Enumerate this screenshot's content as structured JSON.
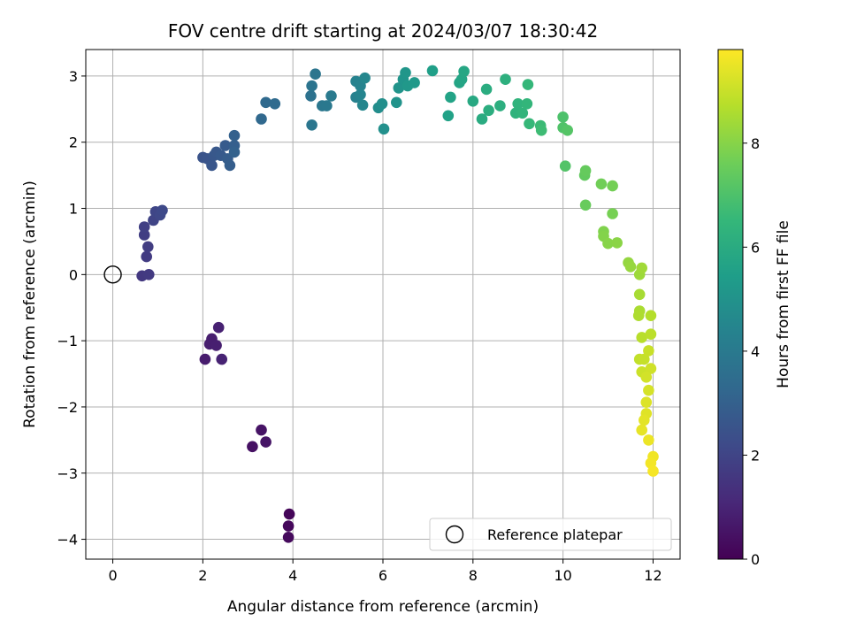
{
  "chart_data": {
    "type": "scatter",
    "title": "FOV centre drift starting at 2024/03/07 18:30:42",
    "xlabel": "Angular distance from reference (arcmin)",
    "ylabel": "Rotation from reference (arcmin)",
    "xlim": [
      -0.6,
      12.6
    ],
    "ylim": [
      -4.3,
      3.4
    ],
    "xticks": [
      0,
      2,
      4,
      6,
      8,
      10,
      12
    ],
    "yticks": [
      -4,
      -3,
      -2,
      -1,
      0,
      1,
      2,
      3
    ],
    "grid": true,
    "legend": {
      "placement": "lower-right",
      "entries": [
        "Reference platepar"
      ]
    },
    "reference_point": {
      "name": "Reference platepar",
      "x": 0,
      "y": 0
    },
    "colorbar": {
      "label": "Hours from first FF file",
      "colormap": "viridis",
      "range": [
        0,
        9.8
      ],
      "ticks": [
        0,
        2,
        4,
        6,
        8
      ]
    },
    "viridis_stops": [
      "#440154",
      "#482878",
      "#3e4a89",
      "#31688e",
      "#26828e",
      "#1f9e89",
      "#35b779",
      "#6ece58",
      "#b5de2b",
      "#fde725"
    ],
    "points": [
      [
        3.92,
        -3.62,
        0.15
      ],
      [
        3.9,
        -3.8,
        0.2
      ],
      [
        3.9,
        -3.97,
        0.25
      ],
      [
        3.1,
        -2.6,
        0.45
      ],
      [
        3.3,
        -2.35,
        0.5
      ],
      [
        3.4,
        -2.53,
        0.55
      ],
      [
        2.05,
        -1.28,
        0.75
      ],
      [
        2.15,
        -1.05,
        0.8
      ],
      [
        2.2,
        -0.97,
        0.82
      ],
      [
        2.3,
        -1.07,
        0.85
      ],
      [
        2.35,
        -0.8,
        0.9
      ],
      [
        2.42,
        -1.28,
        0.95
      ],
      [
        0.65,
        -0.02,
        1.6
      ],
      [
        0.8,
        0.0,
        1.65
      ],
      [
        0.75,
        0.27,
        1.7
      ],
      [
        0.78,
        0.42,
        1.75
      ],
      [
        0.7,
        0.6,
        1.8
      ],
      [
        0.7,
        0.72,
        1.85
      ],
      [
        0.9,
        0.82,
        2.0
      ],
      [
        0.95,
        0.95,
        2.05
      ],
      [
        1.05,
        0.9,
        2.1
      ],
      [
        1.1,
        0.97,
        2.15
      ],
      [
        2.0,
        1.77,
        2.5
      ],
      [
        2.1,
        1.75,
        2.55
      ],
      [
        2.2,
        1.65,
        2.6
      ],
      [
        2.25,
        1.8,
        2.65
      ],
      [
        2.3,
        1.85,
        2.7
      ],
      [
        2.4,
        1.8,
        2.75
      ],
      [
        2.5,
        1.95,
        2.8
      ],
      [
        2.55,
        1.75,
        2.85
      ],
      [
        2.6,
        1.65,
        2.9
      ],
      [
        2.7,
        1.95,
        2.95
      ],
      [
        2.7,
        2.1,
        3.0
      ],
      [
        2.7,
        1.85,
        3.05
      ],
      [
        3.3,
        2.35,
        3.3
      ],
      [
        3.4,
        2.6,
        3.35
      ],
      [
        3.6,
        2.58,
        3.4
      ],
      [
        4.4,
        2.7,
        3.7
      ],
      [
        4.42,
        2.85,
        3.75
      ],
      [
        4.5,
        3.03,
        3.8
      ],
      [
        4.42,
        2.26,
        3.85
      ],
      [
        4.65,
        2.55,
        3.9
      ],
      [
        4.75,
        2.55,
        3.95
      ],
      [
        4.85,
        2.7,
        4.0
      ],
      [
        5.4,
        2.68,
        4.3
      ],
      [
        5.4,
        2.92,
        4.35
      ],
      [
        5.5,
        2.85,
        4.4
      ],
      [
        5.5,
        2.72,
        4.45
      ],
      [
        5.55,
        2.56,
        4.5
      ],
      [
        5.6,
        2.97,
        4.55
      ],
      [
        5.9,
        2.52,
        4.8
      ],
      [
        5.98,
        2.58,
        4.85
      ],
      [
        6.02,
        2.2,
        4.9
      ],
      [
        6.3,
        2.6,
        5.0
      ],
      [
        6.35,
        2.82,
        5.05
      ],
      [
        6.45,
        2.95,
        5.1
      ],
      [
        6.5,
        3.05,
        5.15
      ],
      [
        6.55,
        2.85,
        5.2
      ],
      [
        6.7,
        2.9,
        5.25
      ],
      [
        7.1,
        3.08,
        5.5
      ],
      [
        7.45,
        2.4,
        5.6
      ],
      [
        7.5,
        2.68,
        5.65
      ],
      [
        7.7,
        2.9,
        5.7
      ],
      [
        7.75,
        2.95,
        5.75
      ],
      [
        7.8,
        3.07,
        5.8
      ],
      [
        8.0,
        2.62,
        5.9
      ],
      [
        8.2,
        2.35,
        6.0
      ],
      [
        8.3,
        2.8,
        6.05
      ],
      [
        8.35,
        2.48,
        6.1
      ],
      [
        8.6,
        2.55,
        6.15
      ],
      [
        8.72,
        2.95,
        6.2
      ],
      [
        8.95,
        2.44,
        6.3
      ],
      [
        9.0,
        2.58,
        6.35
      ],
      [
        9.1,
        2.44,
        6.4
      ],
      [
        9.2,
        2.58,
        6.45
      ],
      [
        9.22,
        2.87,
        6.5
      ],
      [
        9.25,
        2.28,
        6.55
      ],
      [
        9.5,
        2.25,
        6.65
      ],
      [
        9.52,
        2.18,
        6.7
      ],
      [
        10.0,
        2.38,
        7.0
      ],
      [
        10.0,
        2.22,
        7.05
      ],
      [
        10.05,
        1.64,
        7.1
      ],
      [
        10.1,
        2.18,
        7.15
      ],
      [
        10.48,
        1.5,
        7.4
      ],
      [
        10.5,
        1.57,
        7.45
      ],
      [
        10.5,
        1.05,
        7.5
      ],
      [
        10.85,
        1.37,
        7.65
      ],
      [
        11.1,
        1.34,
        7.7
      ],
      [
        11.1,
        0.92,
        7.75
      ],
      [
        10.9,
        0.65,
        7.9
      ],
      [
        10.9,
        0.58,
        7.95
      ],
      [
        11.0,
        0.47,
        8.0
      ],
      [
        11.2,
        0.48,
        8.05
      ],
      [
        11.45,
        0.18,
        8.2
      ],
      [
        11.5,
        0.12,
        8.25
      ],
      [
        11.7,
        0.0,
        8.35
      ],
      [
        11.75,
        0.1,
        8.4
      ],
      [
        11.7,
        -0.3,
        8.5
      ],
      [
        11.7,
        -0.55,
        8.55
      ],
      [
        11.68,
        -0.62,
        8.6
      ],
      [
        11.95,
        -0.62,
        8.7
      ],
      [
        11.75,
        -0.95,
        8.75
      ],
      [
        11.95,
        -0.9,
        8.8
      ],
      [
        11.7,
        -1.28,
        8.9
      ],
      [
        11.8,
        -1.28,
        8.95
      ],
      [
        11.9,
        -1.15,
        9.0
      ],
      [
        11.75,
        -1.47,
        9.05
      ],
      [
        11.95,
        -1.42,
        9.1
      ],
      [
        11.85,
        -1.55,
        9.15
      ],
      [
        11.9,
        -1.75,
        9.2
      ],
      [
        11.85,
        -1.93,
        9.3
      ],
      [
        11.85,
        -2.1,
        9.35
      ],
      [
        11.8,
        -2.2,
        9.4
      ],
      [
        11.75,
        -2.35,
        9.45
      ],
      [
        11.9,
        -2.5,
        9.55
      ],
      [
        12.0,
        -2.75,
        9.6
      ],
      [
        11.95,
        -2.85,
        9.65
      ],
      [
        12.0,
        -2.97,
        9.7
      ]
    ]
  }
}
